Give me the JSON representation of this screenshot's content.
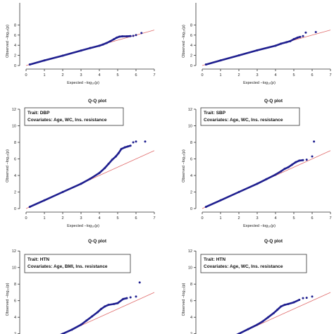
{
  "colors": {
    "points": "#1f1f8f",
    "reference_line": "#e06b6b",
    "axis": "#333333",
    "legend_border": "#333333"
  },
  "chart_data": [
    {
      "type": "scatter",
      "title": "",
      "xlabel": "Expected −log₁₀(p)",
      "ylabel": "Observed −log₁₀(p)",
      "xlim": [
        0,
        7
      ],
      "ylim": [
        0,
        12
      ],
      "xticks": [
        "0",
        "1",
        "2",
        "3",
        "4",
        "5",
        "6",
        "7"
      ],
      "yticks": [
        "0",
        "2",
        "4",
        "6",
        "8"
      ],
      "legend": [],
      "points": [
        [
          0.2,
          0.2
        ],
        [
          1.0,
          1.0
        ],
        [
          2.0,
          1.95
        ],
        [
          3.0,
          2.95
        ],
        [
          3.5,
          3.45
        ],
        [
          4.0,
          3.9
        ],
        [
          4.2,
          4.15
        ],
        [
          4.4,
          4.45
        ],
        [
          4.6,
          4.8
        ],
        [
          4.8,
          5.2
        ],
        [
          4.95,
          5.5
        ],
        [
          5.1,
          5.7
        ],
        [
          5.25,
          5.75
        ],
        [
          5.5,
          5.75
        ],
        [
          5.7,
          5.8
        ],
        [
          5.85,
          5.85
        ],
        [
          6.0,
          6.0
        ],
        [
          6.3,
          6.4
        ]
      ]
    },
    {
      "type": "scatter",
      "title": "",
      "xlabel": "Expected −log₁₀(p)",
      "ylabel": "Observed −log₁₀(p)",
      "xlim": [
        0,
        7
      ],
      "ylim": [
        0,
        12
      ],
      "xticks": [
        "0",
        "1",
        "2",
        "3",
        "4",
        "5",
        "6",
        "7"
      ],
      "yticks": [
        "0",
        "2",
        "4",
        "6",
        "8"
      ],
      "legend": [],
      "points": [
        [
          0.2,
          0.2
        ],
        [
          1.0,
          1.0
        ],
        [
          2.0,
          2.0
        ],
        [
          3.0,
          3.0
        ],
        [
          4.0,
          3.9
        ],
        [
          4.3,
          4.3
        ],
        [
          4.6,
          4.6
        ],
        [
          4.8,
          4.8
        ],
        [
          5.0,
          5.2
        ],
        [
          5.2,
          5.5
        ],
        [
          5.35,
          5.65
        ],
        [
          5.5,
          5.8
        ],
        [
          5.65,
          6.5
        ],
        [
          6.2,
          6.6
        ]
      ]
    },
    {
      "type": "scatter",
      "title": "Q-Q plot",
      "xlabel": "Expected −log₁₀(p)",
      "ylabel": "Observed −log₁₀(p)",
      "xlim": [
        0,
        7
      ],
      "ylim": [
        0,
        12
      ],
      "xticks": [
        "0",
        "1",
        "2",
        "3",
        "4",
        "5",
        "6",
        "7"
      ],
      "yticks": [
        "0",
        "2",
        "4",
        "6",
        "8",
        "10",
        "12"
      ],
      "legend": [
        "Trait: DBP",
        "Covariates: Age, WC, Ins. resistance"
      ],
      "points": [
        [
          0.2,
          0.2
        ],
        [
          1.0,
          1.0
        ],
        [
          2.0,
          2.0
        ],
        [
          3.0,
          3.0
        ],
        [
          3.5,
          3.6
        ],
        [
          4.0,
          4.3
        ],
        [
          4.3,
          4.9
        ],
        [
          4.5,
          5.4
        ],
        [
          4.7,
          5.9
        ],
        [
          4.9,
          6.3
        ],
        [
          5.05,
          6.7
        ],
        [
          5.2,
          7.2
        ],
        [
          5.4,
          7.4
        ],
        [
          5.55,
          7.5
        ],
        [
          5.7,
          7.6
        ],
        [
          5.85,
          8.0
        ],
        [
          6.0,
          8.1
        ],
        [
          6.5,
          8.1
        ]
      ]
    },
    {
      "type": "scatter",
      "title": "Q-Q plot",
      "xlabel": "Expected −log₁₀(p)",
      "ylabel": "Observed −log₁₀(p)",
      "xlim": [
        0,
        7
      ],
      "ylim": [
        0,
        12
      ],
      "xticks": [
        "0",
        "1",
        "2",
        "3",
        "4",
        "5",
        "6",
        "7"
      ],
      "yticks": [
        "0",
        "2",
        "4",
        "6",
        "8",
        "10",
        "12"
      ],
      "legend": [
        "Trait: SBP",
        "Covariates: Age, WC, Ins. resistance"
      ],
      "points": [
        [
          0.2,
          0.2
        ],
        [
          1.0,
          1.0
        ],
        [
          2.0,
          2.0
        ],
        [
          3.0,
          3.0
        ],
        [
          3.5,
          3.55
        ],
        [
          4.0,
          4.1
        ],
        [
          4.3,
          4.5
        ],
        [
          4.5,
          4.8
        ],
        [
          4.7,
          5.0
        ],
        [
          4.9,
          5.3
        ],
        [
          5.1,
          5.6
        ],
        [
          5.3,
          5.8
        ],
        [
          5.5,
          5.85
        ],
        [
          5.7,
          5.9
        ],
        [
          6.0,
          6.3
        ],
        [
          6.1,
          8.1
        ]
      ]
    },
    {
      "type": "scatter",
      "title": "Q-Q plot",
      "xlabel": "",
      "ylabel": "Observed −log₁₀(p)",
      "xlim": [
        0,
        7
      ],
      "ylim": [
        0,
        12
      ],
      "xticks": [],
      "yticks": [
        "2",
        "4",
        "6",
        "8",
        "10",
        "12"
      ],
      "legend": [
        "Trait: HTN",
        "Covariates: Age, BMI, Ins. resistance"
      ],
      "points": [
        [
          1.2,
          1.2
        ],
        [
          2.0,
          2.0
        ],
        [
          2.5,
          2.5
        ],
        [
          3.0,
          3.1
        ],
        [
          3.3,
          3.6
        ],
        [
          3.6,
          4.1
        ],
        [
          3.9,
          4.6
        ],
        [
          4.1,
          5.0
        ],
        [
          4.3,
          5.3
        ],
        [
          4.5,
          5.5
        ],
        [
          4.8,
          5.6
        ],
        [
          5.0,
          5.7
        ],
        [
          5.3,
          6.2
        ],
        [
          5.5,
          6.3
        ],
        [
          5.7,
          6.4
        ],
        [
          6.0,
          6.5
        ],
        [
          6.2,
          8.2
        ]
      ]
    },
    {
      "type": "scatter",
      "title": "Q-Q plot",
      "xlabel": "",
      "ylabel": "Observed −log₁₀(p)",
      "xlim": [
        0,
        7
      ],
      "ylim": [
        0,
        12
      ],
      "xticks": [],
      "yticks": [
        "2",
        "4",
        "6",
        "8",
        "10",
        "12"
      ],
      "legend": [
        "Trait: HTN",
        "Covariates: Age, WC, Ins. resistance"
      ],
      "points": [
        [
          1.2,
          1.2
        ],
        [
          2.0,
          2.0
        ],
        [
          2.5,
          2.55
        ],
        [
          3.0,
          3.1
        ],
        [
          3.3,
          3.5
        ],
        [
          3.6,
          4.0
        ],
        [
          3.9,
          4.5
        ],
        [
          4.1,
          4.9
        ],
        [
          4.3,
          5.3
        ],
        [
          4.5,
          5.5
        ],
        [
          4.7,
          5.6
        ],
        [
          5.0,
          5.8
        ],
        [
          5.3,
          6.1
        ],
        [
          5.5,
          6.3
        ],
        [
          5.7,
          6.35
        ],
        [
          6.0,
          6.5
        ]
      ]
    }
  ]
}
